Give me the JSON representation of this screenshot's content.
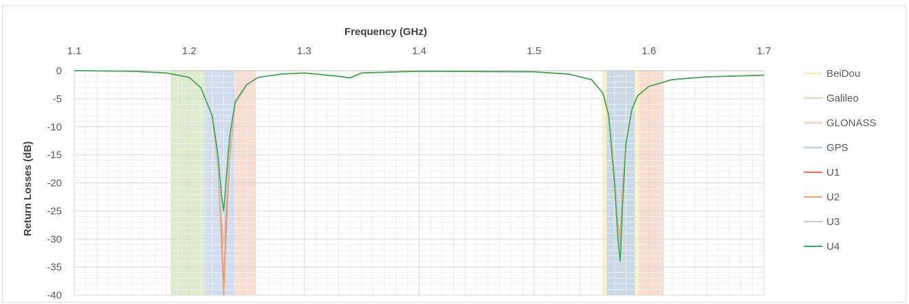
{
  "chart_data": {
    "type": "line",
    "title": "",
    "xlabel": "Frequency (GHz)",
    "ylabel": "Return Losses (dB)",
    "xlim": [
      1.1,
      1.7
    ],
    "ylim": [
      -40,
      0
    ],
    "x_ticks": [
      "1.1",
      "1.2",
      "1.3",
      "1.4",
      "1.5",
      "1.6",
      "1.7"
    ],
    "y_ticks": [
      "0",
      "-5",
      "-10",
      "-15",
      "-20",
      "-25",
      "-30",
      "-35",
      "-40"
    ],
    "x_axis_position": "top",
    "grid": true,
    "legend_position": "right",
    "bands": [
      {
        "name": "BeiDou",
        "color": "#fdeeb4",
        "ranges": [
          [
            1.5592,
            1.5632
          ],
          [
            1.5876,
            1.5916
          ]
        ]
      },
      {
        "name": "Galileo",
        "color": "#d5e6c0",
        "ranges": [
          [
            1.1838,
            1.2138
          ],
          [
            1.5632,
            1.5876
          ]
        ]
      },
      {
        "name": "GLONASS",
        "color": "#f8d3c0",
        "ranges": [
          [
            1.2398,
            1.258
          ],
          [
            1.5916,
            1.6126
          ]
        ]
      },
      {
        "name": "GPS",
        "color": "#c4d3ec",
        "ranges": [
          [
            1.2138,
            1.2398
          ],
          [
            1.5632,
            1.5876
          ]
        ]
      }
    ],
    "series": [
      {
        "name": "U1",
        "color": "#ef6c55",
        "x": [
          1.1,
          1.15,
          1.18,
          1.2,
          1.21,
          1.22,
          1.225,
          1.228,
          1.23,
          1.232,
          1.235,
          1.24,
          1.25,
          1.26,
          1.28,
          1.3,
          1.33,
          1.34,
          1.35,
          1.4,
          1.5,
          1.53,
          1.55,
          1.56,
          1.565,
          1.57,
          1.573,
          1.575,
          1.577,
          1.58,
          1.585,
          1.59,
          1.6,
          1.62,
          1.65,
          1.7
        ],
        "y": [
          0,
          -0.1,
          -0.4,
          -1.2,
          -3,
          -8,
          -16,
          -28,
          -39,
          -28,
          -15,
          -6,
          -2.5,
          -1.2,
          -0.6,
          -0.4,
          -1,
          -1.3,
          -0.4,
          -0.1,
          -0.2,
          -0.6,
          -1.6,
          -4,
          -8,
          -18,
          -28,
          -31,
          -22,
          -13,
          -7,
          -4.5,
          -2.8,
          -1.6,
          -1.1,
          -0.8
        ]
      },
      {
        "name": "U2",
        "color": "#f4a16a",
        "x": [
          1.1,
          1.15,
          1.18,
          1.2,
          1.21,
          1.22,
          1.225,
          1.228,
          1.23,
          1.232,
          1.235,
          1.24,
          1.25,
          1.26,
          1.28,
          1.3,
          1.33,
          1.34,
          1.35,
          1.4,
          1.5,
          1.53,
          1.55,
          1.56,
          1.565,
          1.57,
          1.573,
          1.575,
          1.577,
          1.58,
          1.585,
          1.59,
          1.6,
          1.62,
          1.65,
          1.7
        ],
        "y": [
          0,
          -0.1,
          -0.4,
          -1.2,
          -3,
          -8,
          -17,
          -30,
          -40,
          -30,
          -16,
          -6,
          -2.5,
          -1.2,
          -0.6,
          -0.4,
          -1,
          -1.3,
          -0.4,
          -0.1,
          -0.2,
          -0.6,
          -1.6,
          -4,
          -8,
          -18,
          -27,
          -30,
          -21,
          -13,
          -7,
          -4.5,
          -2.8,
          -1.6,
          -1.1,
          -0.8
        ]
      },
      {
        "name": "U3",
        "color": "#c9c9c9",
        "x": [
          1.1,
          1.15,
          1.18,
          1.2,
          1.21,
          1.22,
          1.225,
          1.228,
          1.23,
          1.232,
          1.235,
          1.24,
          1.25,
          1.26,
          1.28,
          1.3,
          1.33,
          1.34,
          1.35,
          1.4,
          1.5,
          1.53,
          1.55,
          1.56,
          1.565,
          1.57,
          1.573,
          1.575,
          1.577,
          1.58,
          1.585,
          1.59,
          1.6,
          1.62,
          1.65,
          1.7
        ],
        "y": [
          0,
          -0.1,
          -0.4,
          -1.2,
          -3,
          -8,
          -16,
          -26,
          -31,
          -24,
          -14,
          -6,
          -2.5,
          -1.2,
          -0.6,
          -0.4,
          -1,
          -1.3,
          -0.4,
          -0.1,
          -0.2,
          -0.6,
          -1.6,
          -4,
          -8,
          -18,
          -28,
          -32,
          -23,
          -13,
          -7,
          -4.5,
          -2.8,
          -1.6,
          -1.1,
          -0.8
        ]
      },
      {
        "name": "U4",
        "color": "#3aa552",
        "x": [
          1.1,
          1.15,
          1.18,
          1.2,
          1.21,
          1.22,
          1.225,
          1.228,
          1.23,
          1.232,
          1.235,
          1.24,
          1.25,
          1.26,
          1.28,
          1.3,
          1.33,
          1.34,
          1.35,
          1.4,
          1.5,
          1.53,
          1.55,
          1.56,
          1.565,
          1.57,
          1.573,
          1.575,
          1.577,
          1.58,
          1.585,
          1.59,
          1.6,
          1.62,
          1.65,
          1.7
        ],
        "y": [
          0,
          -0.1,
          -0.4,
          -1.2,
          -3,
          -8,
          -15,
          -22,
          -25,
          -20,
          -12,
          -5.5,
          -2.5,
          -1.2,
          -0.6,
          -0.4,
          -1,
          -1.3,
          -0.4,
          -0.1,
          -0.2,
          -0.6,
          -1.6,
          -4,
          -8,
          -20,
          -30,
          -34,
          -24,
          -13,
          -7,
          -4.5,
          -2.8,
          -1.6,
          -1.1,
          -0.8
        ]
      }
    ]
  }
}
